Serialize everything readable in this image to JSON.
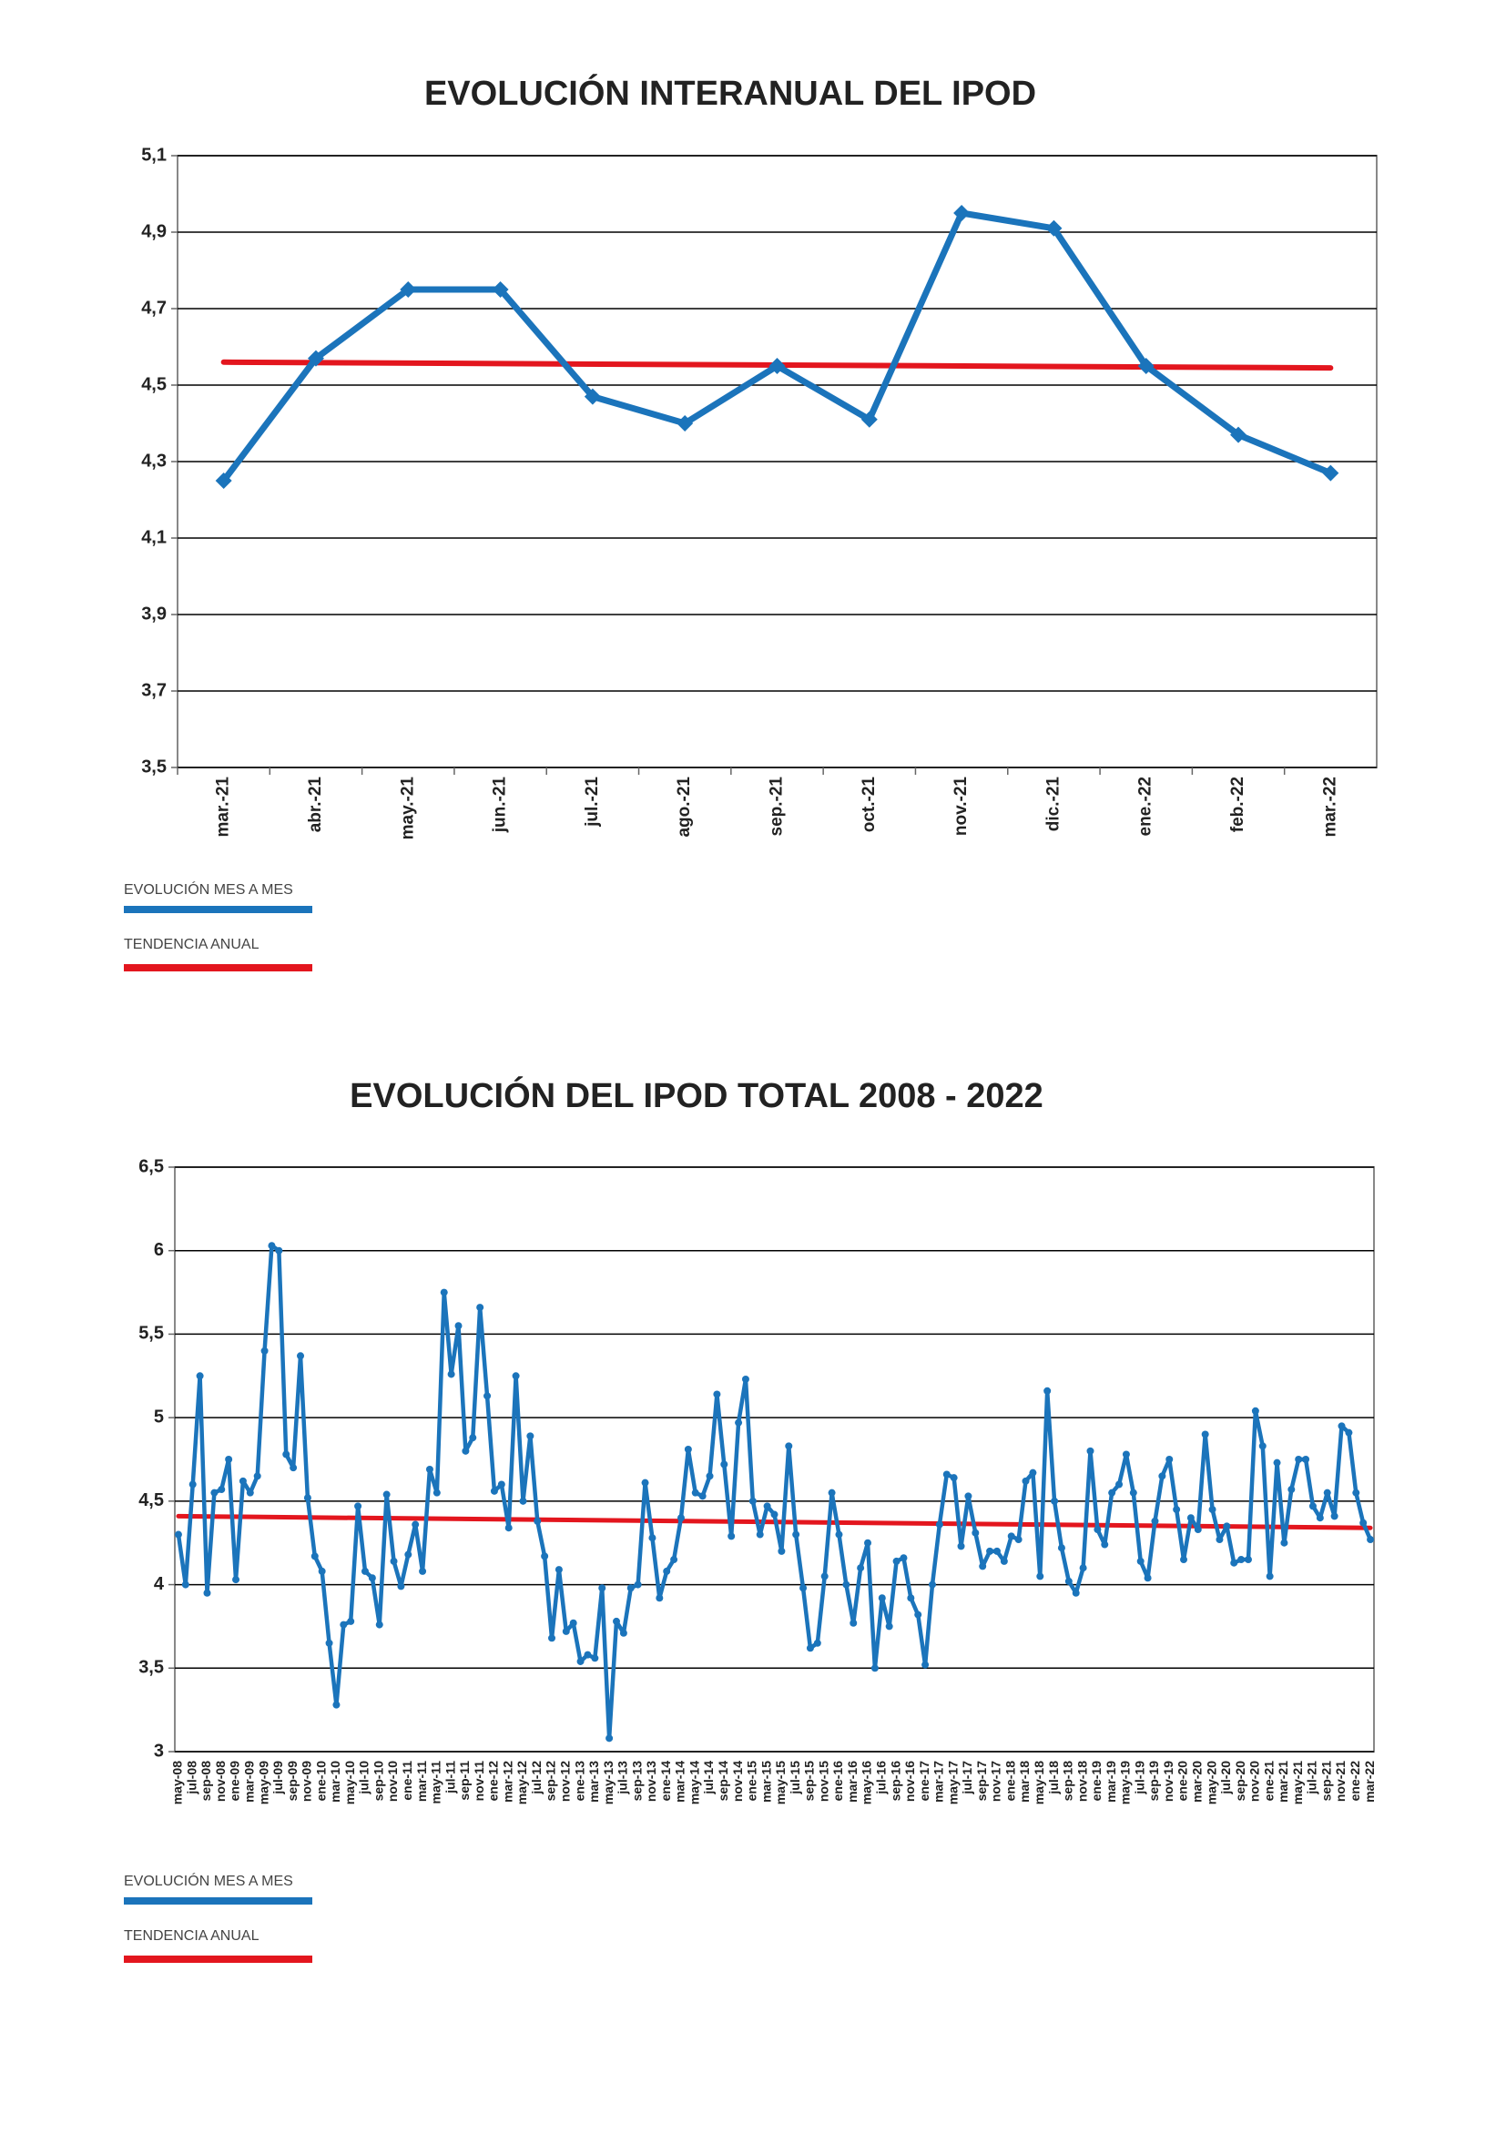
{
  "chart_data": [
    {
      "type": "line",
      "title": "EVOLUCIÓN INTERANUAL DEL IPOD",
      "marker": "diamond",
      "grid": true,
      "categories": [
        "mar.-21",
        "abr.-21",
        "may.-21",
        "jun.-21",
        "jul.-21",
        "ago.-21",
        "sep.-21",
        "oct.-21",
        "nov.-21",
        "dic.-21",
        "ene.-22",
        "feb.-22",
        "mar.-22"
      ],
      "series": [
        {
          "name": "EVOLUCIÓN MES A MES",
          "color": "#1b74bb",
          "values": [
            4.25,
            4.57,
            4.75,
            4.75,
            4.47,
            4.4,
            4.55,
            4.41,
            4.95,
            4.91,
            4.55,
            4.37,
            4.27
          ]
        }
      ],
      "trend": {
        "name": "TENDENCIA ANUAL",
        "color": "#e3161e",
        "start": 4.56,
        "end": 4.545
      },
      "ylim": [
        3.5,
        5.1
      ],
      "yticks": [
        {
          "value": 3.5,
          "label": "3,5"
        },
        {
          "value": 3.7,
          "label": "3,7"
        },
        {
          "value": 3.9,
          "label": "3,9"
        },
        {
          "value": 4.1,
          "label": "4,1"
        },
        {
          "value": 4.3,
          "label": "4,3"
        },
        {
          "value": 4.5,
          "label": "4,5"
        },
        {
          "value": 4.7,
          "label": "4,7"
        },
        {
          "value": 4.9,
          "label": "4,9"
        },
        {
          "value": 5.1,
          "label": "5,1"
        }
      ]
    },
    {
      "type": "line",
      "title": "EVOLUCIÓN DEL IPOD TOTAL 2008 - 2022",
      "marker": "circle",
      "grid": true,
      "categories": [
        "may-08",
        null,
        "jul-08",
        null,
        "sep-08",
        null,
        "nov-08",
        null,
        "ene-09",
        null,
        "mar-09",
        null,
        "may-09",
        null,
        "jul-09",
        null,
        "sep-09",
        null,
        "nov-09",
        null,
        "ene-10",
        null,
        "mar-10",
        null,
        "may-10",
        null,
        "jul-10",
        null,
        "sep-10",
        null,
        "nov-10",
        null,
        "ene-11",
        null,
        "mar-11",
        null,
        "may-11",
        null,
        "jul-11",
        null,
        "sep-11",
        null,
        "nov-11",
        null,
        "ene-12",
        null,
        "mar-12",
        null,
        "may-12",
        null,
        "jul-12",
        null,
        "sep-12",
        null,
        "nov-12",
        null,
        "ene-13",
        null,
        "mar-13",
        null,
        "may-13",
        null,
        "jul-13",
        null,
        "sep-13",
        null,
        "nov-13",
        null,
        "ene-14",
        null,
        "mar-14",
        null,
        "may-14",
        null,
        "jul-14",
        null,
        "sep-14",
        null,
        "nov-14",
        null,
        "ene-15",
        null,
        "mar-15",
        null,
        "may-15",
        null,
        "jul-15",
        null,
        "sep-15",
        null,
        "nov-15",
        null,
        "ene-16",
        null,
        "mar-16",
        null,
        "may-16",
        null,
        "jul-16",
        null,
        "sep-16",
        null,
        "nov-16",
        null,
        "ene-17",
        null,
        "mar-17",
        null,
        "may-17",
        null,
        "jul-17",
        null,
        "sep-17",
        null,
        "nov-17",
        null,
        "ene-18",
        null,
        "mar-18",
        null,
        "may-18",
        null,
        "jul-18",
        null,
        "sep-18",
        null,
        "nov-18",
        null,
        "ene-19",
        null,
        "mar-19",
        null,
        "may-19",
        null,
        "jul-19",
        null,
        "sep-19",
        null,
        "nov-19",
        null,
        "ene-20",
        null,
        "mar-20",
        null,
        "may-20",
        null,
        "jul-20",
        null,
        "sep-20",
        null,
        "nov-20",
        null,
        "ene-21",
        null,
        "mar-21",
        null,
        "may-21",
        null,
        "jul-21",
        null,
        "sep-21",
        null,
        "nov-21",
        null,
        "ene-22",
        null,
        "mar-22"
      ],
      "series": [
        {
          "name": "EVOLUCIÓN MES A MES",
          "color": "#1b74bb",
          "values": [
            4.3,
            4.0,
            4.6,
            5.25,
            3.95,
            4.55,
            4.57,
            4.75,
            4.03,
            4.62,
            4.55,
            4.65,
            5.4,
            6.03,
            6.0,
            4.78,
            4.7,
            5.37,
            4.52,
            4.17,
            4.08,
            3.65,
            3.28,
            3.76,
            3.78,
            4.47,
            4.08,
            4.04,
            3.76,
            4.54,
            4.14,
            3.99,
            4.18,
            4.36,
            4.08,
            4.69,
            4.55,
            5.75,
            5.26,
            5.55,
            4.8,
            4.88,
            5.66,
            5.13,
            4.56,
            4.6,
            4.34,
            5.25,
            4.5,
            4.89,
            4.38,
            4.17,
            3.68,
            4.09,
            3.72,
            3.77,
            3.54,
            3.58,
            3.56,
            3.98,
            3.08,
            3.78,
            3.71,
            3.98,
            4.0,
            4.61,
            4.28,
            3.92,
            4.08,
            4.15,
            4.4,
            4.81,
            4.55,
            4.53,
            4.65,
            5.14,
            4.72,
            4.29,
            4.97,
            5.23,
            4.5,
            4.3,
            4.47,
            4.42,
            4.2,
            4.83,
            4.3,
            3.98,
            3.62,
            3.65,
            4.05,
            4.55,
            4.3,
            4.0,
            3.77,
            4.1,
            4.25,
            3.5,
            3.92,
            3.75,
            4.14,
            4.16,
            3.92,
            3.82,
            3.52,
            4.0,
            4.36,
            4.66,
            4.64,
            4.23,
            4.53,
            4.31,
            4.11,
            4.2,
            4.2,
            4.14,
            4.29,
            4.27,
            4.62,
            4.67,
            4.05,
            5.16,
            4.5,
            4.22,
            4.02,
            3.95,
            4.1,
            4.8,
            4.33,
            4.24,
            4.55,
            4.6,
            4.78,
            4.55,
            4.14,
            4.04,
            4.38,
            4.65,
            4.75,
            4.45,
            4.15,
            4.4,
            4.33,
            4.9,
            4.45,
            4.27,
            4.35,
            4.13,
            4.15,
            4.15,
            5.04,
            4.83,
            4.05,
            4.73,
            4.25,
            4.57,
            4.75,
            4.75,
            4.47,
            4.4,
            4.55,
            4.41,
            4.95,
            4.91,
            4.55,
            4.37,
            4.27
          ]
        }
      ],
      "trend": {
        "name": "TENDENCIA ANUAL",
        "color": "#e3161e",
        "start": 4.41,
        "end": 4.34
      },
      "ylim": [
        3,
        6.5
      ],
      "yticks": [
        3,
        {
          "value": 3.5,
          "label": "3,5"
        },
        4,
        {
          "value": 4.5,
          "label": "4,5"
        },
        5,
        {
          "value": 5.5,
          "label": "5,5"
        },
        6,
        {
          "value": 6.5,
          "label": "6,5"
        }
      ]
    }
  ]
}
